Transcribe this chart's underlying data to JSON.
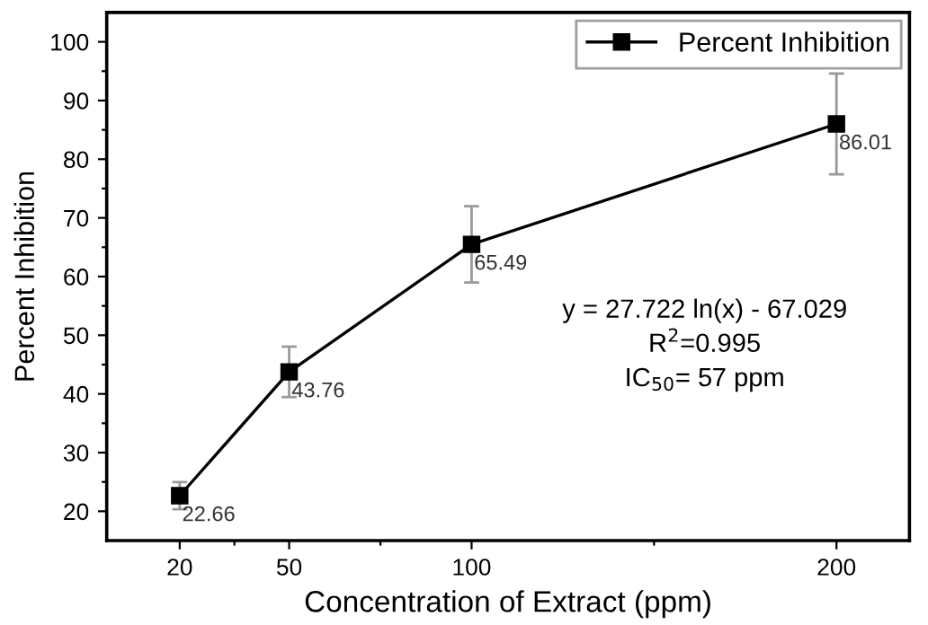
{
  "chart_data": {
    "type": "line",
    "xlabel": "Concentration of Extract (ppm)",
    "ylabel": "Percent Inhibition",
    "x": [
      20,
      50,
      100,
      200
    ],
    "series": [
      {
        "name": "Percent Inhibition",
        "color": "#000000",
        "values": [
          22.66,
          43.76,
          65.49,
          86.01
        ],
        "errors": [
          2.3,
          4.3,
          6.5,
          8.6
        ]
      }
    ],
    "xlim": [
      0,
      220
    ],
    "xticks": [
      20,
      {
        "value": 35,
        "label": null
      },
      50,
      {
        "value": 75,
        "label": null
      },
      100,
      {
        "value": 150,
        "label": null
      },
      200
    ],
    "ylim": [
      15,
      105
    ],
    "yticks": [
      20,
      {
        "value": 25,
        "label": null
      },
      30,
      {
        "value": 35,
        "label": null
      },
      40,
      {
        "value": 45,
        "label": null
      },
      50,
      {
        "value": 55,
        "label": null
      },
      60,
      {
        "value": 65,
        "label": null
      },
      70,
      {
        "value": 75,
        "label": null
      },
      80,
      {
        "value": 85,
        "label": null
      },
      90,
      {
        "value": 95,
        "label": null
      },
      100
    ],
    "data_labels": true,
    "marker": "square",
    "line_style": "solid",
    "legend": "top right",
    "grid": false,
    "annotations": [
      "y = 27.722 ln(x) - 67.029",
      "R$^{2}$=0.995",
      "IC$_{50}$= 57 ppm"
    ]
  }
}
